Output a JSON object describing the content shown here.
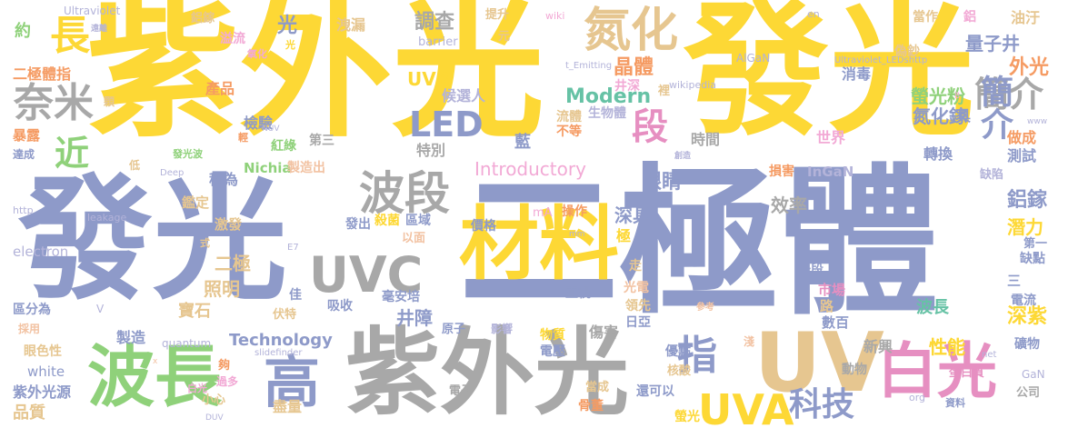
{
  "palette": {
    "yellow": "#fdd835",
    "blue_gray": "#8e9ac9",
    "gray": "#a8a8a8",
    "green": "#8fd17a",
    "orange": "#f59b63",
    "tan": "#e6c690",
    "pink": "#e68fc1",
    "teal": "#66c2a5"
  },
  "words": {
    "w001": "紫外光",
    "w002": "發光",
    "w003": "發光",
    "w004": "二極體",
    "w005": "紫外光",
    "w006": "材料",
    "w007": "波長",
    "w008": "UV",
    "w009": "UVC",
    "w010": "白光",
    "w011": "高",
    "w012": "UVA",
    "w013": "波段",
    "w014": "氮化",
    "w015": "長",
    "w016": "奈米",
    "w017": "LED",
    "w018": "指",
    "w019": "段",
    "w020": "近",
    "w021": "科技",
    "w022": "簡介",
    "w023": "Introductory",
    "w024": "Modern",
    "w025": "量子井",
    "w026": "UVB",
    "w027": "調查",
    "w028": "晶體",
    "w029": "氮化鎵",
    "w030": "螢光粉",
    "w031": "外光",
    "w032": "鋁鎵",
    "w033": "潛力",
    "w034": "深紫",
    "w035": "性能",
    "w036": "Technology",
    "w037": "效率",
    "w038": "眼睛",
    "w039": "深具",
    "w040": "二極",
    "w041": "照明",
    "w042": "井障",
    "w043": "寶石",
    "w044": "波長",
    "w045": "紫外光源",
    "w046": "品質",
    "w047": "二極體指",
    "w048": "約",
    "w049": "產品",
    "w050": "溢流",
    "w051": "檢驗",
    "w052": "稱為",
    "w053": "Nichia",
    "w054": "製造出",
    "w055": "紅綠",
    "w056": "第三",
    "w057": "特別",
    "w058": "候選人",
    "w059": "流體",
    "w060": "不等",
    "w061": "生物體",
    "w062": "井深",
    "w063": "藍",
    "w064": "時間",
    "w065": "世界",
    "w066": "轉換",
    "w067": "InGaN",
    "w068": "損害",
    "w069": "做成",
    "w070": "測試",
    "w071": "缺陷",
    "w072": "具",
    "w073": "油汙",
    "w074": "消毒",
    "w075": "偽鈔",
    "w076": "當作",
    "w077": "鋁",
    "w078": "光",
    "w079": "洩漏",
    "w080": "提升",
    "w081": "元",
    "w082": "barrier",
    "w083": "Ultraviolet",
    "w084": "鋁鎵",
    "w085": "wiki",
    "w086": "en",
    "w087": "AlGaN",
    "w088": "t_Emitting",
    "w089": "Ultraviolet_LEDshttp",
    "w090": "wikipedia",
    "w091": "裡",
    "w092": "區域",
    "w093": "價格",
    "w094": "操作",
    "w095": "極",
    "w096": "殺菌",
    "w097": "發出",
    "w098": "激發",
    "w099": "鑑定",
    "w100": "以面",
    "w101": "mA",
    "w102": "走",
    "w103": "光電",
    "w104": "直視",
    "w105": "領先",
    "w106": "日亞",
    "w107": "市場",
    "w108": "路",
    "w109": "數百",
    "w110": "電流",
    "w111": "三",
    "w112": "缺點",
    "w113": "第一",
    "w114": "一段",
    "w115": "吸收",
    "w116": "毫安培",
    "w117": "伏特",
    "w118": "佳",
    "w119": "原子",
    "w120": "影響",
    "w121": "物質",
    "w122": "電壓",
    "w123": "傷害",
    "w124": "優點",
    "w125": "淺",
    "w126": "新興",
    "w127": "礦物",
    "w128": "動物",
    "w129": "蛋白質",
    "w130": "GaN",
    "w131": "公司",
    "w132": "資料",
    "w133": "org",
    "w134": "net",
    "w135": "核酸",
    "w136": "還可以",
    "w137": "當成",
    "w138": "骨董",
    "w139": "螢光",
    "w140": "電子",
    "w141": "盡量",
    "w142": "小心",
    "w143": "過多",
    "w144": "夠",
    "w145": "白光",
    "w146": "white",
    "w147": "quantum",
    "w148": "製造",
    "w149": "眼色性",
    "w150": "採用",
    "w151": "區分為",
    "w152": "electron",
    "w153": "http",
    "w154": "leakage",
    "w155": "式",
    "w156": "V",
    "w157": "發光波",
    "w158": "Deep",
    "w159": "低",
    "w160": "暴露",
    "w161": "達成",
    "w162": "輕",
    "w163": "顆",
    "w164": "NUV",
    "w165": "光",
    "w166": "氧化",
    "w167": "E7",
    "w168": "slidefinder",
    "w169": "DUV",
    "w170": "參考",
    "w171": "x",
    "w172": "B",
    "w173": "www",
    "w174": "創造",
    "w175": "遠離",
    "w176": "mm"
  }
}
